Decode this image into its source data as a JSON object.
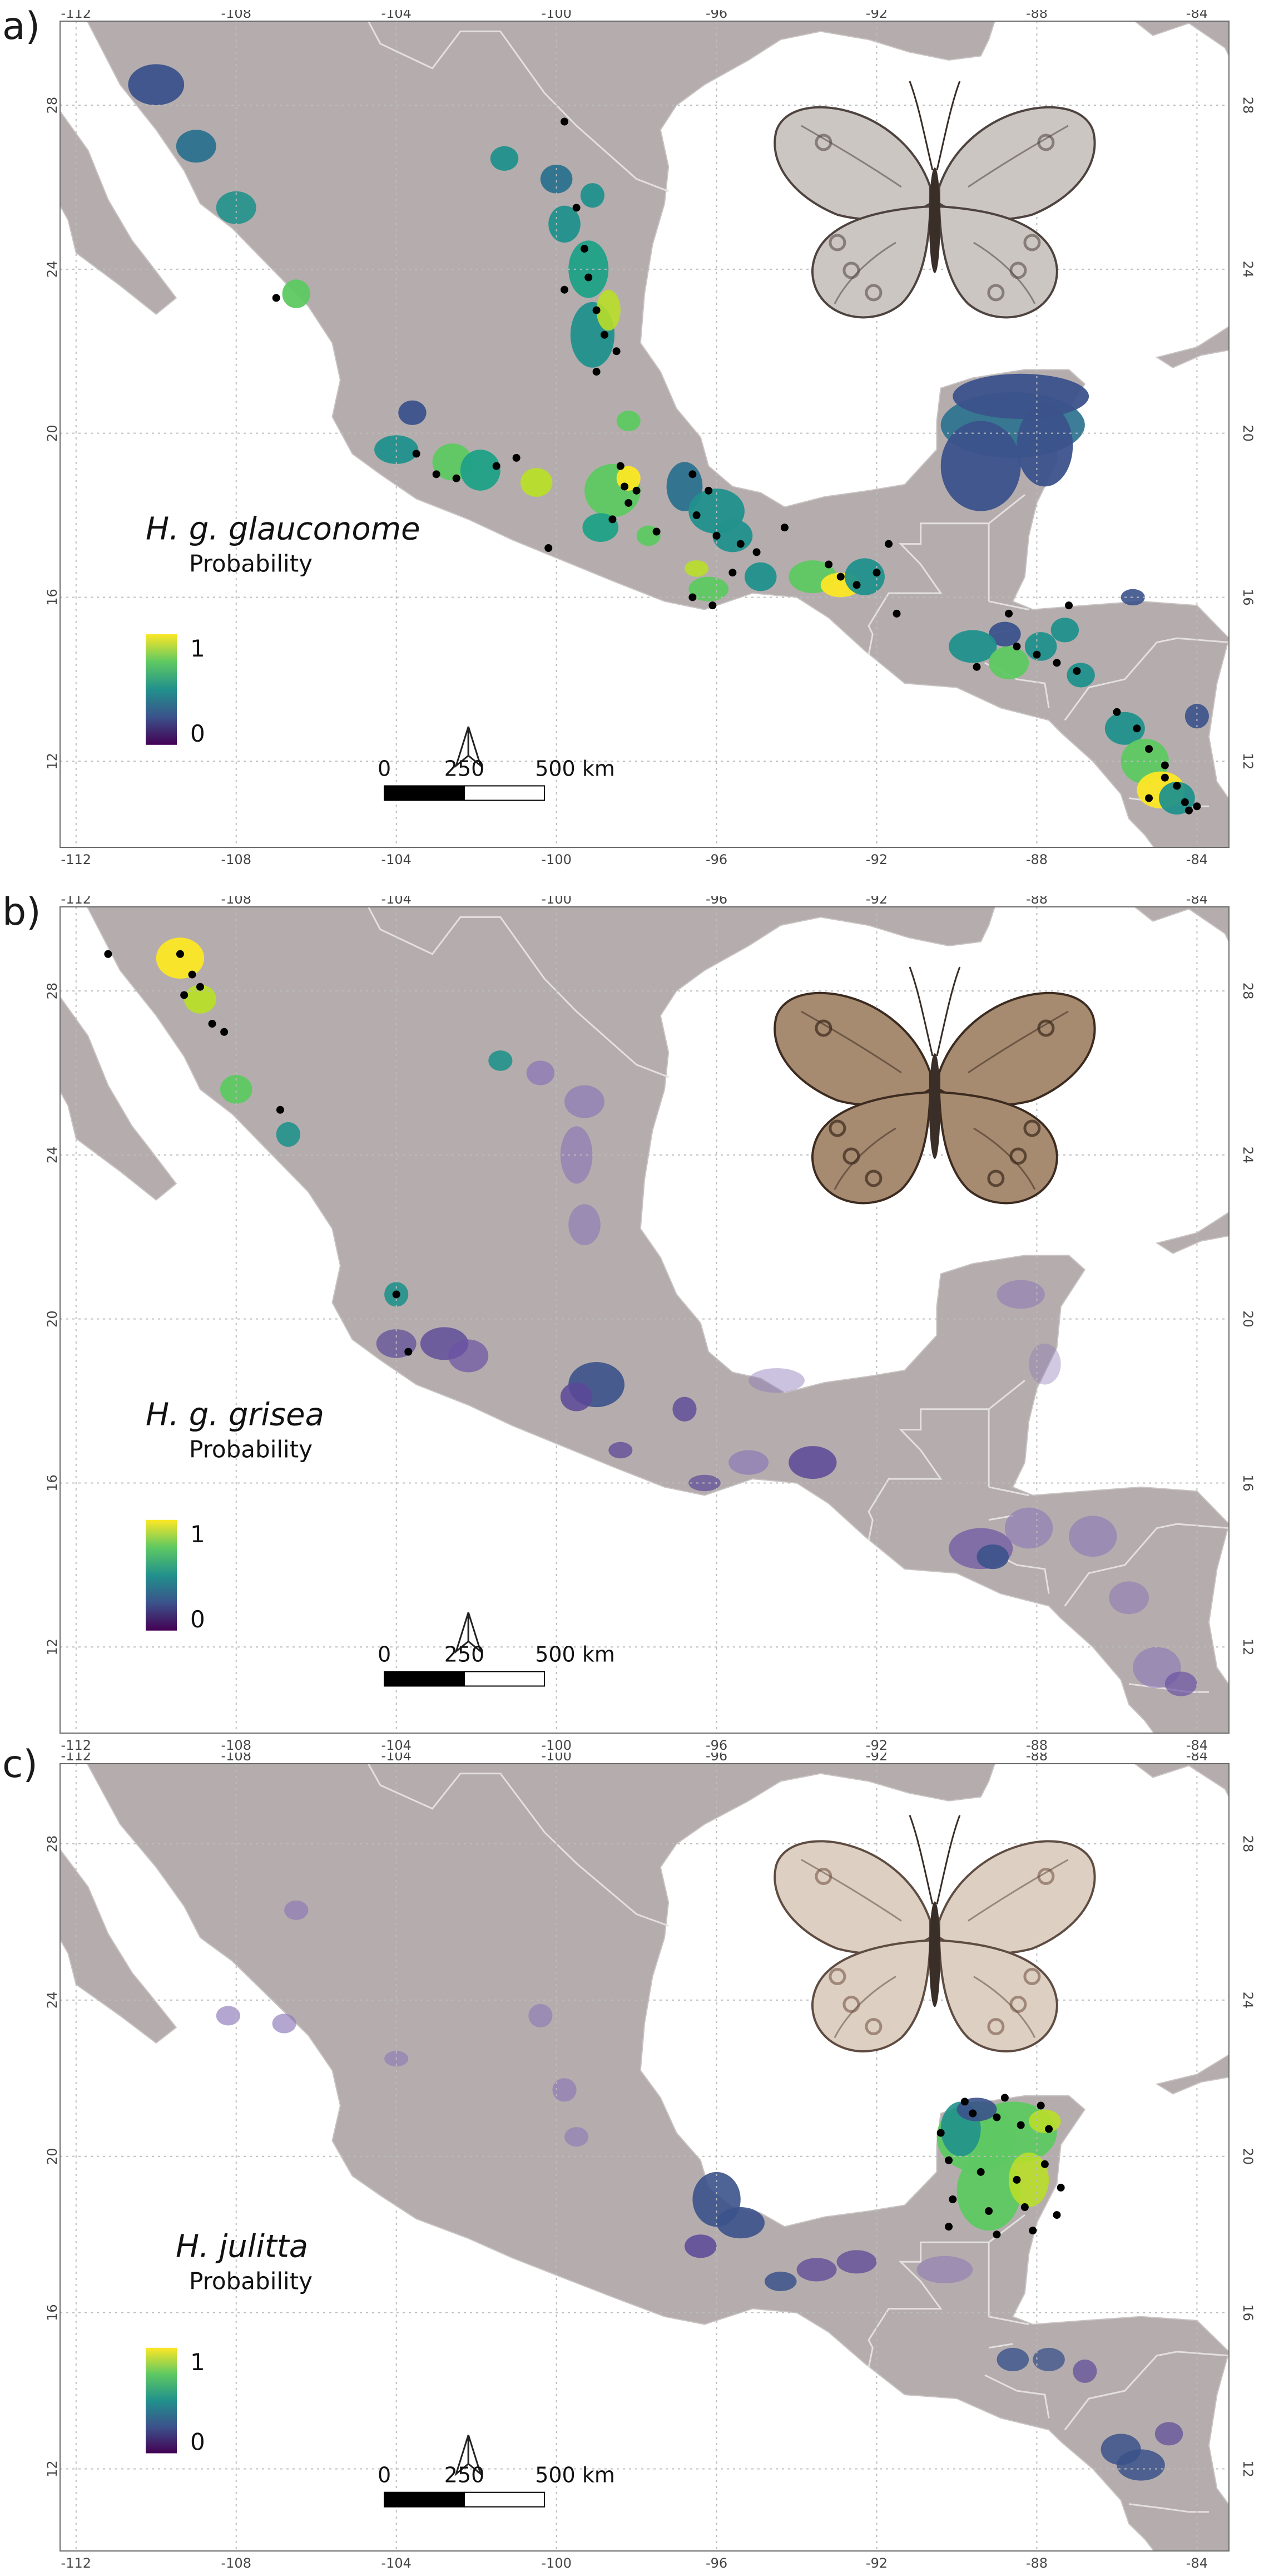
{
  "figure": {
    "x_tick_labels": [
      "-112",
      "-108",
      "-104",
      "-100",
      "-96",
      "-92",
      "-88",
      "-84"
    ],
    "y_tick_labels": [
      "28",
      "24",
      "20",
      "16",
      "12"
    ],
    "legend": {
      "title": "Probability",
      "max_label": "1",
      "min_label": "0",
      "gradient_colors": [
        "#fde725",
        "#5ec962",
        "#21918c",
        "#3b528b",
        "#440154"
      ]
    },
    "scale_bar": {
      "labels": [
        "0",
        "250",
        "500 km"
      ]
    },
    "colors": {
      "land": "#b5adad",
      "ocean": "#ffffff",
      "grid": "#bcbcbc",
      "occurrence": "#000000"
    }
  },
  "panels": [
    {
      "letter": "a)",
      "species": "H. g. glauconome",
      "legend_title": "Probability",
      "butterfly_icon": "butterfly-grey-white-icon",
      "occurrences": [
        [
          -107,
          23.3
        ],
        [
          -103.5,
          19.5
        ],
        [
          -103,
          19
        ],
        [
          -102.5,
          18.9
        ],
        [
          -101.5,
          19.2
        ],
        [
          -101,
          19.4
        ],
        [
          -99.8,
          27.6
        ],
        [
          -99.5,
          25.5
        ],
        [
          -99.3,
          24.5
        ],
        [
          -99.2,
          23.8
        ],
        [
          -99,
          23
        ],
        [
          -98.8,
          22.4
        ],
        [
          -98.5,
          22
        ],
        [
          -99.8,
          23.5
        ],
        [
          -99,
          21.5
        ],
        [
          -98.4,
          19.2
        ],
        [
          -98.3,
          18.7
        ],
        [
          -98.2,
          18.3
        ],
        [
          -98,
          18.6
        ],
        [
          -98.6,
          17.9
        ],
        [
          -97.5,
          17.6
        ],
        [
          -96.6,
          19
        ],
        [
          -96.2,
          18.6
        ],
        [
          -96.5,
          18
        ],
        [
          -96,
          17.5
        ],
        [
          -95.4,
          17.3
        ],
        [
          -96.6,
          16
        ],
        [
          -96.1,
          15.8
        ],
        [
          -95.6,
          16.6
        ],
        [
          -95,
          17.1
        ],
        [
          -93.2,
          16.8
        ],
        [
          -92.9,
          16.5
        ],
        [
          -92.5,
          16.3
        ],
        [
          -92,
          16.6
        ],
        [
          -91.7,
          17.3
        ],
        [
          -88.5,
          14.8
        ],
        [
          -88,
          14.6
        ],
        [
          -87.5,
          14.4
        ],
        [
          -87,
          14.2
        ],
        [
          -89.5,
          14.3
        ],
        [
          -86,
          13.2
        ],
        [
          -85.5,
          12.8
        ],
        [
          -85.2,
          12.3
        ],
        [
          -84.8,
          11.9
        ],
        [
          -84.5,
          11.4
        ],
        [
          -84.3,
          11
        ],
        [
          -84.8,
          11.6
        ],
        [
          -85.2,
          11.1
        ],
        [
          -84.2,
          10.8
        ],
        [
          -84,
          10.9
        ],
        [
          -88.7,
          15.6
        ],
        [
          -87.2,
          15.8
        ],
        [
          -91.5,
          15.6
        ],
        [
          -94.3,
          17.7
        ],
        [
          -100.2,
          17.2
        ]
      ]
    },
    {
      "letter": "b)",
      "species": "H. g. grisea",
      "legend_title": "Probability",
      "butterfly_icon": "butterfly-brown-icon",
      "occurrences": [
        [
          -111.2,
          28.9
        ],
        [
          -109.4,
          28.9
        ],
        [
          -109.1,
          28.4
        ],
        [
          -109.3,
          27.9
        ],
        [
          -108.9,
          28.1
        ],
        [
          -108.6,
          27.2
        ],
        [
          -108.3,
          27
        ],
        [
          -106.9,
          25.1
        ],
        [
          -104,
          20.6
        ],
        [
          -103.7,
          19.2
        ]
      ]
    },
    {
      "letter": "c)",
      "species": "H. julitta",
      "legend_title": "Probability",
      "butterfly_icon": "butterfly-pale-icon",
      "occurrences": [
        [
          -90.4,
          20.6
        ],
        [
          -89.6,
          21.1
        ],
        [
          -89,
          21
        ],
        [
          -88.4,
          20.8
        ],
        [
          -87.7,
          20.7
        ],
        [
          -90.2,
          19.9
        ],
        [
          -89.4,
          19.6
        ],
        [
          -88.5,
          19.4
        ],
        [
          -87.8,
          19.8
        ],
        [
          -90.1,
          18.9
        ],
        [
          -89.2,
          18.6
        ],
        [
          -88.3,
          18.7
        ],
        [
          -87.5,
          18.5
        ],
        [
          -90.2,
          18.2
        ],
        [
          -89,
          18
        ],
        [
          -88.1,
          18.1
        ],
        [
          -87.9,
          21.3
        ],
        [
          -89.8,
          21.4
        ],
        [
          -88.8,
          21.5
        ],
        [
          -87.4,
          19.2
        ]
      ]
    }
  ]
}
